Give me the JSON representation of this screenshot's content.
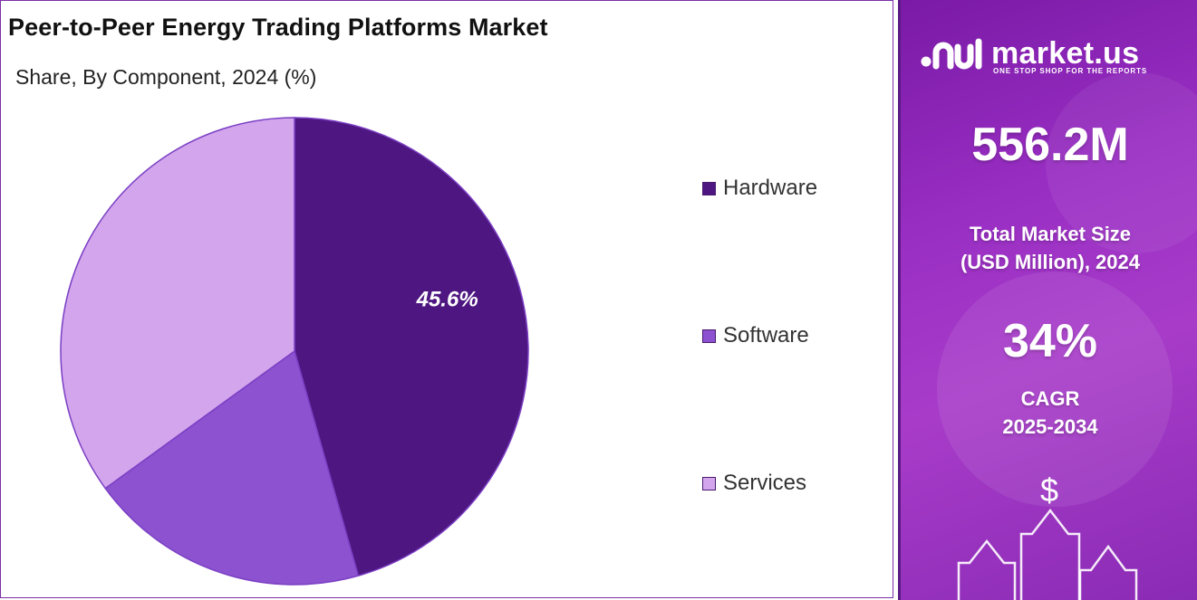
{
  "title": "Peer-to-Peer Energy Trading Platforms Market",
  "subtitle": "Share, By Component, 2024 (%)",
  "chart_data": {
    "type": "pie",
    "title": "Peer-to-Peer Energy Trading Platforms Market",
    "subtitle": "Share, By Component, 2024 (%)",
    "categories": [
      "Hardware",
      "Software",
      "Services"
    ],
    "values": [
      45.6,
      19.4,
      35.0
    ],
    "data_labels": [
      "45.6%",
      "",
      ""
    ],
    "colors": [
      "#4e1680",
      "#8c52d0",
      "#d2a5ec"
    ],
    "legend_placement": "right",
    "slice_border_color": "#7b3fc4"
  },
  "brand": {
    "name": "market.us",
    "tagline": "ONE STOP SHOP FOR THE REPORTS",
    "logo_icon": "market-us-logo-icon"
  },
  "stats": {
    "market_size_value": "556.2M",
    "market_size_label_line1": "Total Market Size",
    "market_size_label_line2": "(USD Million), 2024",
    "cagr_value": "34%",
    "cagr_label_line1": "CAGR",
    "cagr_label_line2": "2025-2034"
  },
  "decor": {
    "currency_symbol": "$",
    "growth_icon": "rising-arrows-icon"
  },
  "colors": {
    "panel_border": "#7b2fa8",
    "info_panel": "#9a2fc4"
  }
}
